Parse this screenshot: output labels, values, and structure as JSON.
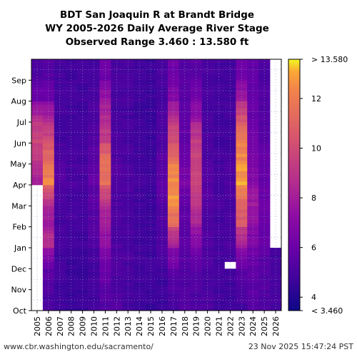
{
  "chart_data": {
    "type": "heatmap",
    "title": [
      "BDT San Joaquin R at Brandt Bridge",
      "WY 2005-2026 Daily Average River Stage",
      "Observed Range 3.460 : 13.580 ft"
    ],
    "x_categories": [
      "2005",
      "2006",
      "2007",
      "2008",
      "2009",
      "2010",
      "2011",
      "2012",
      "2013",
      "2014",
      "2015",
      "2016",
      "2017",
      "2018",
      "2019",
      "2020",
      "2021",
      "2022",
      "2023",
      "2024",
      "2025",
      "2026"
    ],
    "y_categories": [
      "Oct",
      "Nov",
      "Dec",
      "Jan",
      "Feb",
      "Mar",
      "Apr",
      "May",
      "Jun",
      "Jul",
      "Aug",
      "Sep"
    ],
    "value_range": [
      3.46,
      13.58
    ],
    "colorbar": {
      "ticks": [
        4,
        6,
        8,
        10,
        12
      ],
      "max_label": "> 13.580",
      "min_label": "< 3.460",
      "colormap": "plasma"
    },
    "grid": true,
    "monthly_values": {
      "2005": [
        null,
        null,
        null,
        null,
        null,
        null,
        8.0,
        9.0,
        9.8,
        8.6,
        6.0,
        5.2
      ],
      "2006": [
        5.0,
        5.3,
        6.0,
        8.8,
        7.8,
        8.8,
        12.5,
        11.2,
        10.0,
        8.2,
        6.0,
        5.4
      ],
      "2007": [
        4.8,
        4.8,
        4.9,
        5.0,
        4.9,
        5.1,
        5.4,
        5.2,
        4.9,
        4.9,
        5.0,
        4.9
      ],
      "2008": [
        4.6,
        4.6,
        4.7,
        4.8,
        4.9,
        4.9,
        5.1,
        4.9,
        4.8,
        4.8,
        4.9,
        4.8
      ],
      "2009": [
        4.6,
        4.6,
        4.7,
        4.8,
        4.9,
        4.9,
        5.0,
        4.9,
        4.8,
        4.8,
        4.9,
        4.8
      ],
      "2010": [
        4.8,
        4.9,
        4.9,
        5.2,
        5.5,
        5.5,
        5.9,
        5.7,
        5.3,
        5.2,
        5.1,
        5.0
      ],
      "2011": [
        5.3,
        5.7,
        6.1,
        7.4,
        7.8,
        9.0,
        11.4,
        11.3,
        9.3,
        8.6,
        7.5,
        6.1
      ],
      "2012": [
        5.3,
        5.1,
        5.2,
        5.2,
        5.2,
        5.2,
        5.4,
        5.2,
        5.1,
        5.0,
        5.0,
        5.0
      ],
      "2013": [
        4.9,
        4.9,
        5.0,
        5.1,
        5.0,
        5.0,
        5.2,
        5.0,
        4.9,
        4.9,
        5.0,
        5.0
      ],
      "2014": [
        4.7,
        4.7,
        4.8,
        4.8,
        4.8,
        4.8,
        4.9,
        4.8,
        4.7,
        4.7,
        4.8,
        4.8
      ],
      "2015": [
        4.6,
        4.6,
        4.8,
        4.8,
        4.7,
        4.7,
        4.8,
        4.7,
        4.6,
        4.6,
        4.7,
        4.7
      ],
      "2016": [
        4.7,
        4.7,
        4.9,
        5.3,
        5.3,
        5.5,
        5.7,
        5.5,
        5.2,
        5.1,
        5.0,
        5.0
      ],
      "2017": [
        5.0,
        5.3,
        6.0,
        7.8,
        11.3,
        12.6,
        12.6,
        11.6,
        10.2,
        8.8,
        6.9,
        6.1
      ],
      "2018": [
        5.2,
        5.2,
        5.4,
        5.5,
        5.5,
        5.8,
        6.5,
        6.0,
        5.8,
        5.6,
        5.5,
        5.4
      ],
      "2019": [
        5.2,
        5.2,
        5.6,
        6.8,
        8.2,
        9.1,
        9.6,
        9.6,
        9.3,
        7.4,
        6.3,
        5.6
      ],
      "2020": [
        5.2,
        5.1,
        5.2,
        5.3,
        5.2,
        5.3,
        5.4,
        5.2,
        5.1,
        5.0,
        5.0,
        5.0
      ],
      "2021": [
        4.8,
        4.8,
        4.9,
        5.0,
        4.9,
        5.0,
        5.1,
        4.9,
        4.8,
        4.8,
        4.9,
        4.9
      ],
      "2022": [
        4.8,
        4.8,
        4.9,
        5.1,
        5.0,
        5.0,
        5.2,
        5.0,
        4.9,
        4.9,
        4.9,
        4.9
      ],
      "2023": [
        4.9,
        5.2,
        6.1,
        8.1,
        10.4,
        11.2,
        12.9,
        12.4,
        11.6,
        10.3,
        7.9,
        6.2
      ],
      "2024": [
        5.6,
        5.5,
        5.9,
        6.6,
        7.4,
        7.8,
        7.0,
        6.5,
        6.2,
        6.0,
        5.8,
        5.7
      ],
      "2025": [
        5.2,
        5.3,
        5.4,
        5.9,
        6.1,
        6.0,
        5.9,
        5.7,
        5.4,
        5.3,
        5.2,
        5.2
      ],
      "2026": [
        5.0,
        5.0,
        4.9,
        null,
        null,
        null,
        null,
        null,
        null,
        null,
        null,
        null
      ]
    },
    "missing_data_notes": "2005 Oct-Mar blank; 2026 after early Dec blank; short gap in Dec 2022"
  },
  "footer": {
    "source": "www.cbr.washington.edu/sacramento/",
    "timestamp": "23 Nov 2025 15:47:24 PST"
  }
}
